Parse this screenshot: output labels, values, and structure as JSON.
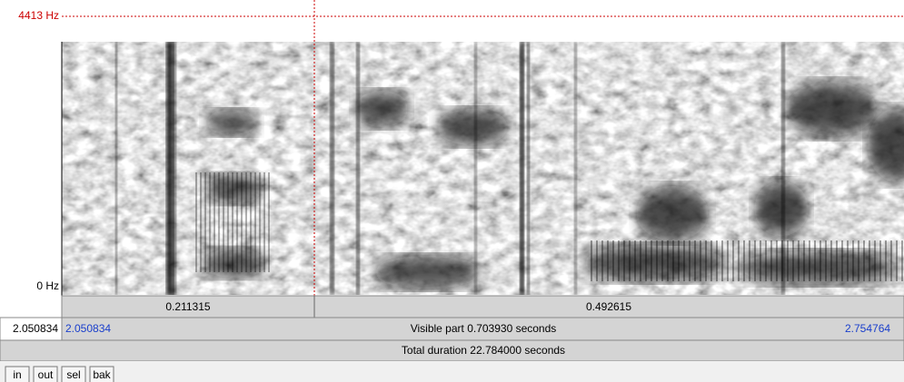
{
  "spectrogram": {
    "freq_max_label": "4413 Hz",
    "freq_min_label": "0 Hz"
  },
  "time_bar": {
    "segments": [
      "0.211315",
      "0.492615"
    ]
  },
  "visible_row": {
    "left_clipped": "2.050834",
    "start": "2.050834",
    "label": "Visible part 0.703930 seconds",
    "end": "2.754764"
  },
  "total_row": {
    "label": "Total duration 22.784000 seconds"
  },
  "buttons": [
    "in",
    "out",
    "sel",
    "bak"
  ]
}
